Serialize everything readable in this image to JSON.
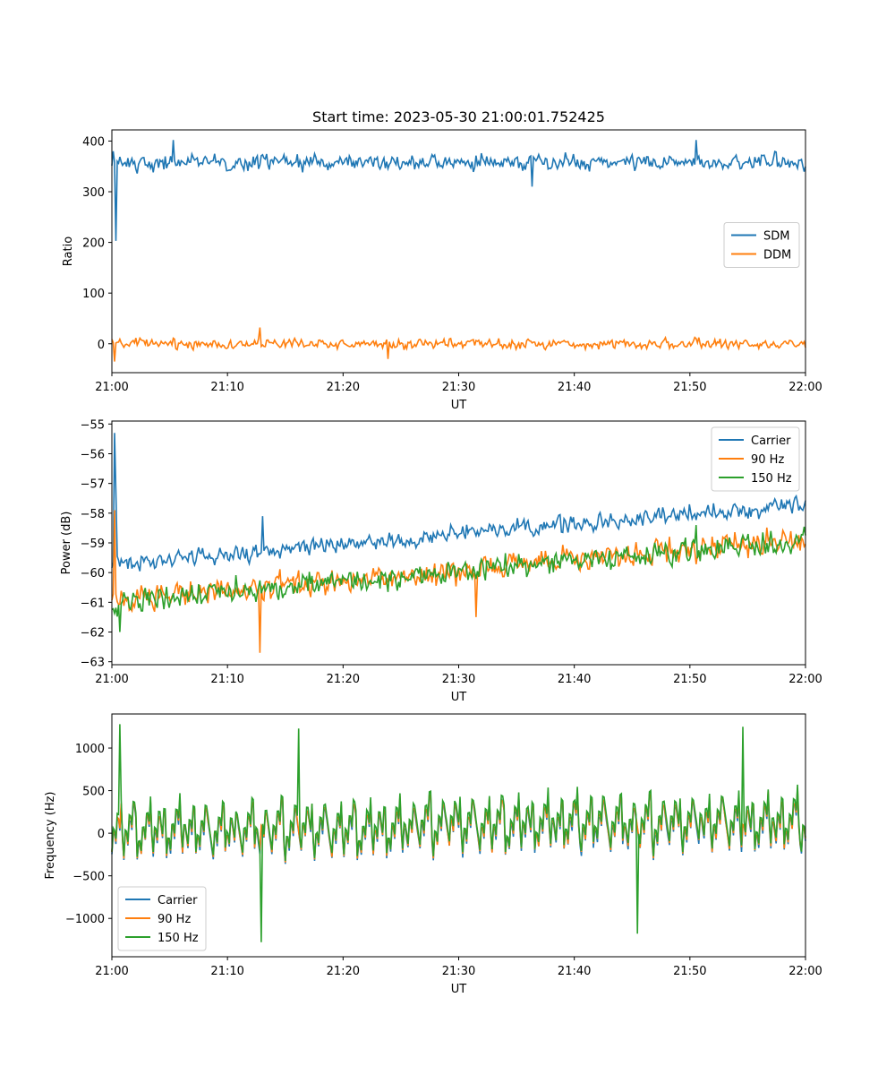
{
  "chart_data": [
    {
      "type": "line",
      "title": "Start time: 2023-05-30 21:00:01.752425",
      "xlabel": "UT",
      "ylabel": "Ratio",
      "x_ticks": [
        "21:00",
        "21:10",
        "21:20",
        "21:30",
        "21:40",
        "21:50",
        "22:00"
      ],
      "x_range_minutes": [
        0,
        60
      ],
      "ylim": [
        -57,
        422
      ],
      "y_ticks": [
        0,
        100,
        200,
        300,
        400
      ],
      "y_tick_labels": [
        "0",
        "100",
        "200",
        "300",
        "400"
      ],
      "grid": false,
      "legend_position": "center-right",
      "series": [
        {
          "name": "SDM",
          "color": "#1f77b4",
          "mean": 358,
          "noise": 16,
          "events": [
            {
              "t": 0.3,
              "value": 203
            },
            {
              "t": 0.1,
              "value": 380
            },
            {
              "t": 5.3,
              "value": 402
            },
            {
              "t": 36.4,
              "value": 310
            },
            {
              "t": 50.5,
              "value": 402
            }
          ]
        },
        {
          "name": "DDM",
          "color": "#ff7f0e",
          "mean": 0,
          "noise": 10,
          "events": [
            {
              "t": 0.2,
              "value": -35
            },
            {
              "t": 12.8,
              "value": 32
            },
            {
              "t": 23.9,
              "value": -30
            }
          ]
        }
      ]
    },
    {
      "type": "line",
      "title": "",
      "xlabel": "UT",
      "ylabel": "Power (dB)",
      "x_ticks": [
        "21:00",
        "21:10",
        "21:20",
        "21:30",
        "21:40",
        "21:50",
        "22:00"
      ],
      "x_range_minutes": [
        0,
        60
      ],
      "ylim": [
        -63.1,
        -54.9
      ],
      "y_ticks": [
        -63,
        -62,
        -61,
        -60,
        -59,
        -58,
        -57,
        -56,
        -55
      ],
      "y_tick_labels": [
        "−63",
        "−62",
        "−61",
        "−60",
        "−59",
        "−58",
        "−57",
        "−56",
        "−55"
      ],
      "grid": false,
      "legend_position": "top-right",
      "series": [
        {
          "name": "Carrier",
          "color": "#1f77b4",
          "start": -59.7,
          "end": -57.7,
          "noise": 0.3,
          "events": [
            {
              "t": 0.2,
              "value": -55.3
            },
            {
              "t": 0.4,
              "value": -57.3
            },
            {
              "t": 13.0,
              "value": -58.1
            }
          ]
        },
        {
          "name": "90 Hz",
          "color": "#ff7f0e",
          "start": -60.9,
          "end": -58.9,
          "noise": 0.45,
          "events": [
            {
              "t": 0.25,
              "value": -57.9
            },
            {
              "t": 12.8,
              "value": -62.7
            },
            {
              "t": 31.5,
              "value": -61.5
            }
          ]
        },
        {
          "name": "150 Hz",
          "color": "#2ca02c",
          "start": -61.0,
          "end": -58.9,
          "noise": 0.42,
          "events": [
            {
              "t": 0.7,
              "value": -62.0
            },
            {
              "t": 50.5,
              "value": -58.4
            }
          ]
        }
      ]
    },
    {
      "type": "line",
      "title": "",
      "xlabel": "UT",
      "ylabel": "Frequency (Hz)",
      "x_ticks": [
        "21:00",
        "21:10",
        "21:20",
        "21:30",
        "21:40",
        "21:50",
        "22:00"
      ],
      "x_range_minutes": [
        0,
        60
      ],
      "ylim": [
        -1450,
        1400
      ],
      "y_ticks": [
        -1000,
        -500,
        0,
        500,
        1000
      ],
      "y_tick_labels": [
        "−1000",
        "−500",
        "0",
        "500",
        "1000"
      ],
      "grid": false,
      "legend_position": "bottom-left",
      "series": [
        {
          "name": "Carrier",
          "color": "#1f77b4",
          "mean": -20,
          "noise": 420
        },
        {
          "name": "90 Hz",
          "color": "#ff7f0e",
          "mean": 0,
          "noise": 420
        },
        {
          "name": "150 Hz",
          "color": "#2ca02c",
          "mean": 30,
          "noise": 430,
          "events": [
            {
              "t": 0.7,
              "value": 1280
            },
            {
              "t": 12.9,
              "value": -1280
            },
            {
              "t": 16.1,
              "value": 1230
            },
            {
              "t": 54.6,
              "value": 1250
            },
            {
              "t": 45.5,
              "value": -1180
            }
          ]
        }
      ]
    }
  ]
}
